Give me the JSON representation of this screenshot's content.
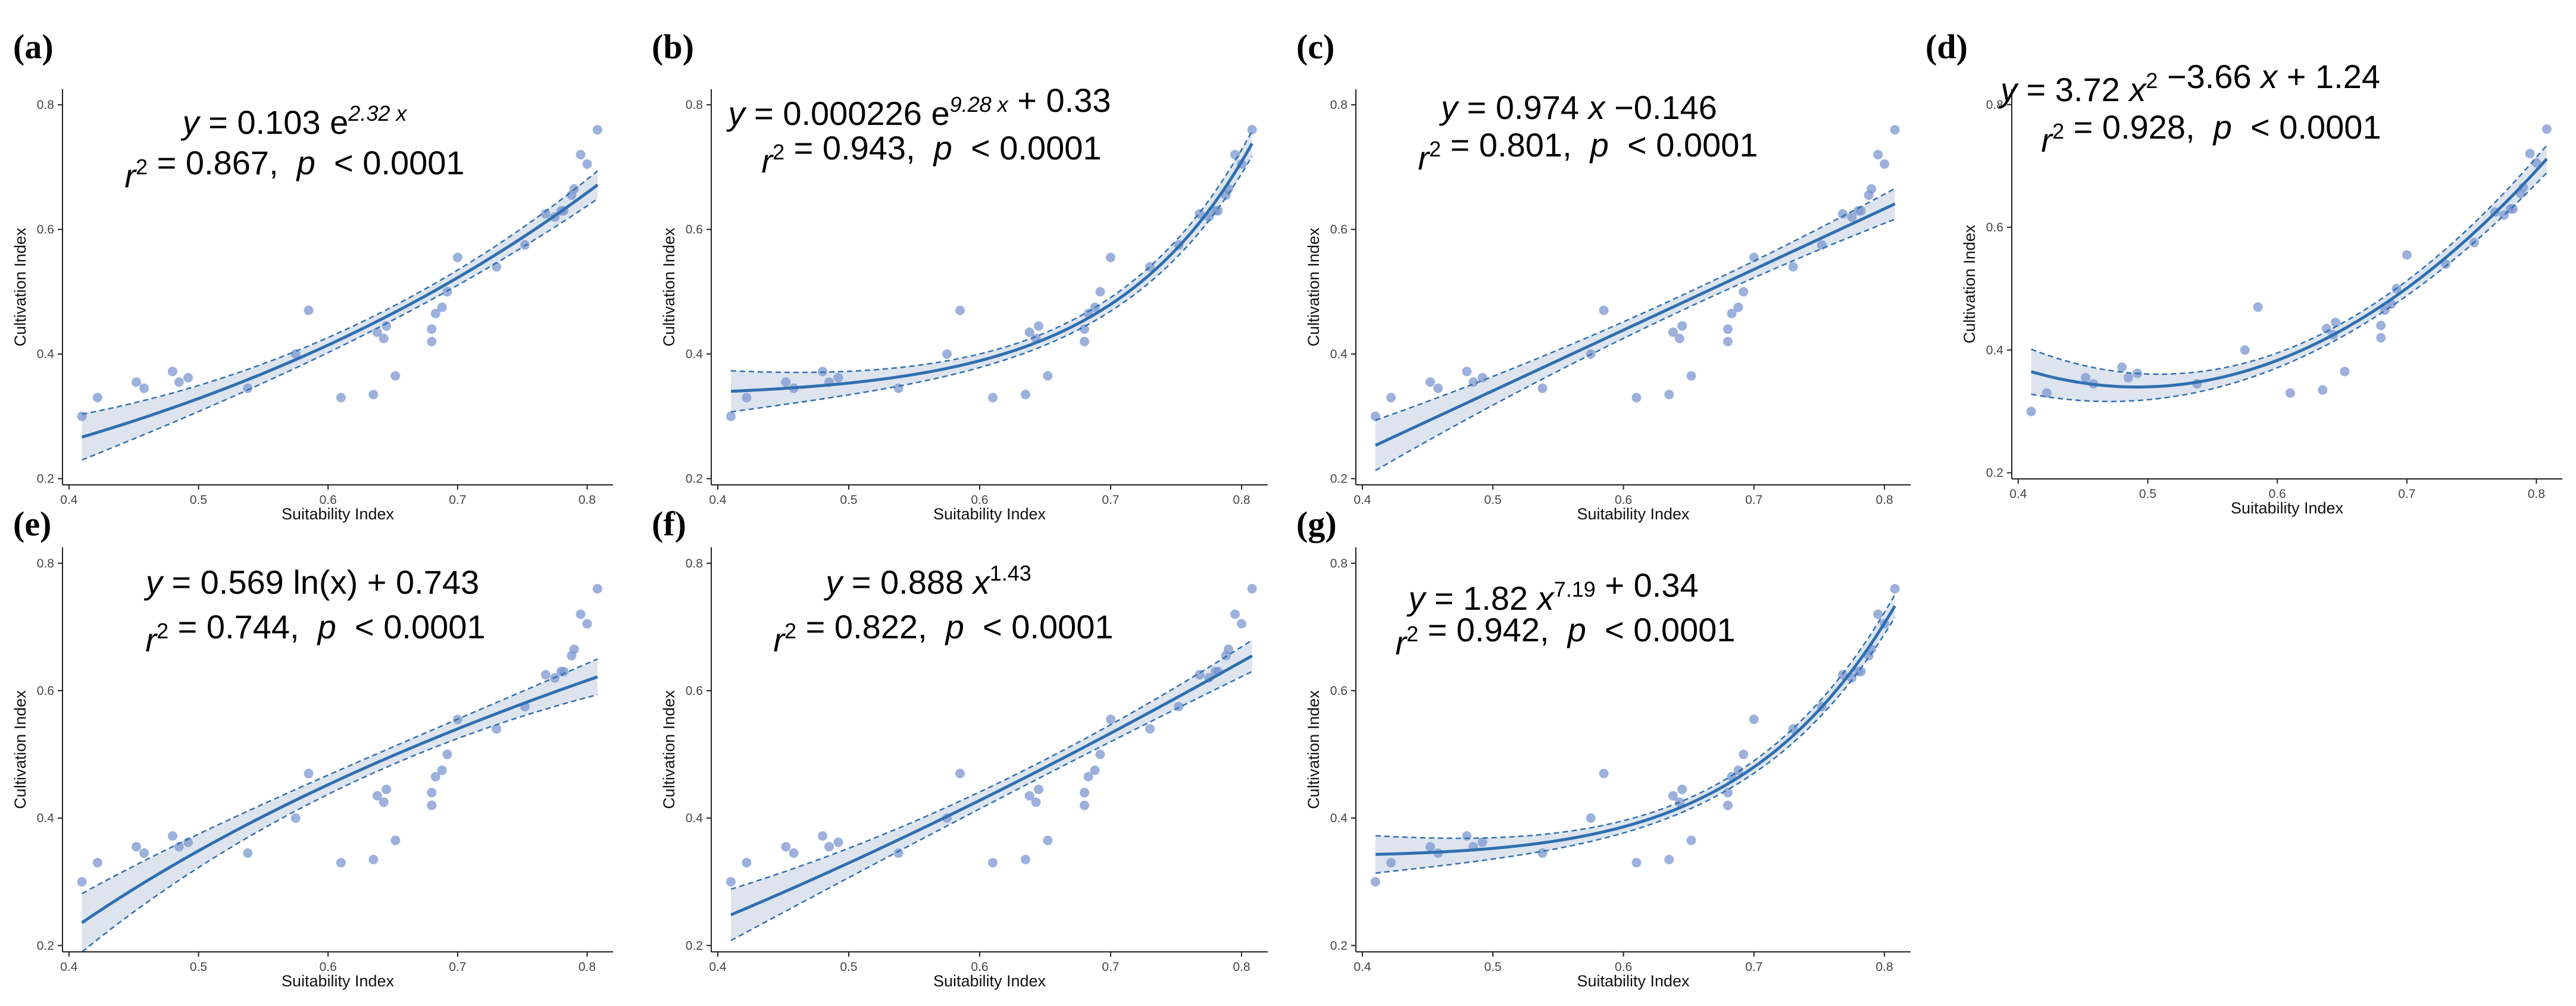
{
  "chart_data": [
    {
      "id": "a",
      "panel_label": "(a)",
      "type": "scatter",
      "fit_model": "exponential",
      "equation": {
        "line1": [
          [
            "y",
            "i"
          ],
          [
            " = 0.103 e",
            ""
          ],
          [
            "2.32 x",
            "sup-i"
          ]
        ],
        "line2": [
          [
            "r",
            "i"
          ],
          [
            "2",
            "sup"
          ],
          [
            " = 0.867,  ",
            ""
          ],
          [
            "p",
            "i"
          ],
          [
            "  < 0.0001",
            ""
          ]
        ]
      },
      "xlabel": "Suitability Index",
      "ylabel": "Cultivation Index",
      "xlim": [
        0.395,
        0.82
      ],
      "ylim": [
        0.19,
        0.825
      ],
      "xticks": [
        0.4,
        0.5,
        0.6,
        0.7,
        0.8
      ],
      "xtick_labels": [
        "0.4",
        "0.5",
        "0.6",
        "0.7",
        "0.8"
      ],
      "yticks": [
        0.2,
        0.4,
        0.6,
        0.8
      ],
      "ytick_labels": [
        "0.2",
        "0.4",
        "0.6",
        "0.8"
      ],
      "fit": {
        "a": 0.103,
        "b": 2.32
      },
      "ci_halfwidth": 0.02
    },
    {
      "id": "b",
      "panel_label": "(b)",
      "type": "scatter",
      "fit_model": "exponential_offset",
      "equation": {
        "line1": [
          [
            "y",
            "i"
          ],
          [
            " = 0.000226 e",
            ""
          ],
          [
            "9.28 x",
            "sup-i"
          ],
          [
            " + 0.33",
            ""
          ]
        ],
        "line2": [
          [
            "r",
            "i"
          ],
          [
            "2",
            "sup"
          ],
          [
            " = 0.943,  ",
            ""
          ],
          [
            "p",
            "i"
          ],
          [
            "  < 0.0001",
            ""
          ]
        ]
      },
      "xlabel": "Suitability Index",
      "ylabel": "Cultivation Index",
      "xlim": [
        0.395,
        0.82
      ],
      "ylim": [
        0.19,
        0.825
      ],
      "xticks": [
        0.4,
        0.5,
        0.6,
        0.7,
        0.8
      ],
      "xtick_labels": [
        "0.4",
        "0.5",
        "0.6",
        "0.7",
        "0.8"
      ],
      "yticks": [
        0.2,
        0.4,
        0.6,
        0.8
      ],
      "ytick_labels": [
        "0.2",
        "0.4",
        "0.6",
        "0.8"
      ],
      "fit": {
        "a": 0.000226,
        "b": 9.28,
        "c": 0.33
      },
      "ci_halfwidth": 0.018
    },
    {
      "id": "c",
      "panel_label": "(c)",
      "type": "scatter",
      "fit_model": "linear",
      "equation": {
        "line1": [
          [
            "y",
            "i"
          ],
          [
            " = 0.974 ",
            ""
          ],
          [
            "x",
            "i"
          ],
          [
            " −0.146",
            ""
          ]
        ],
        "line2": [
          [
            "r",
            "i"
          ],
          [
            "2",
            "sup"
          ],
          [
            " = 0.801,  ",
            ""
          ],
          [
            "p",
            "i"
          ],
          [
            "  < 0.0001",
            ""
          ]
        ]
      },
      "xlabel": "Suitability Index",
      "ylabel": "Cultivation Index",
      "xlim": [
        0.395,
        0.82
      ],
      "ylim": [
        0.19,
        0.825
      ],
      "xticks": [
        0.4,
        0.5,
        0.6,
        0.7,
        0.8
      ],
      "xtick_labels": [
        "0.4",
        "0.5",
        "0.6",
        "0.7",
        "0.8"
      ],
      "yticks": [
        0.2,
        0.4,
        0.6,
        0.8
      ],
      "ytick_labels": [
        "0.2",
        "0.4",
        "0.6",
        "0.8"
      ],
      "fit": {
        "a": 0.974,
        "b": -0.146
      },
      "ci_halfwidth": 0.022
    },
    {
      "id": "d",
      "panel_label": "(d)",
      "type": "scatter",
      "fit_model": "quadratic",
      "equation": {
        "line1": [
          [
            "y",
            "i"
          ],
          [
            " = 3.72 ",
            ""
          ],
          [
            "x",
            "i"
          ],
          [
            "2",
            "sup"
          ],
          [
            " −3.66 ",
            ""
          ],
          [
            "x",
            "i"
          ],
          [
            " + 1.24",
            ""
          ]
        ],
        "line2": [
          [
            "r",
            "i"
          ],
          [
            "2",
            "sup"
          ],
          [
            " = 0.928,  ",
            ""
          ],
          [
            "p",
            "i"
          ],
          [
            "  < 0.0001",
            ""
          ]
        ]
      },
      "xlabel": "Suitability Index",
      "ylabel": "Cultivation Index",
      "xlim": [
        0.395,
        0.82
      ],
      "ylim": [
        0.19,
        0.825
      ],
      "xticks": [
        0.4,
        0.5,
        0.6,
        0.7,
        0.8
      ],
      "xtick_labels": [
        "0.4",
        "0.5",
        "0.6",
        "0.7",
        "0.8"
      ],
      "yticks": [
        0.2,
        0.4,
        0.6,
        0.8
      ],
      "ytick_labels": [
        "0.2",
        "0.4",
        "0.6",
        "0.8"
      ],
      "fit": {
        "a": 3.72,
        "b": -3.66,
        "c": 1.24
      },
      "ci_halfwidth": 0.02
    },
    {
      "id": "e",
      "panel_label": "(e)",
      "type": "scatter",
      "fit_model": "logarithmic",
      "equation": {
        "line1": [
          [
            "y",
            "i"
          ],
          [
            " = 0.569 ln(x) + 0.743",
            ""
          ]
        ],
        "line2": [
          [
            "r",
            "i"
          ],
          [
            "2",
            "sup"
          ],
          [
            " = 0.744,  ",
            ""
          ],
          [
            "p",
            "i"
          ],
          [
            "  < 0.0001",
            ""
          ]
        ]
      },
      "xlabel": "Suitability Index",
      "ylabel": "Cultivation Index",
      "xlim": [
        0.395,
        0.82
      ],
      "ylim": [
        0.19,
        0.825
      ],
      "xticks": [
        0.4,
        0.5,
        0.6,
        0.7,
        0.8
      ],
      "xtick_labels": [
        "0.4",
        "0.5",
        "0.6",
        "0.7",
        "0.8"
      ],
      "yticks": [
        0.2,
        0.4,
        0.6,
        0.8
      ],
      "ytick_labels": [
        "0.2",
        "0.4",
        "0.6",
        "0.8"
      ],
      "fit": {
        "a": 0.569,
        "b": 0.743
      },
      "ci_halfwidth": 0.025
    },
    {
      "id": "f",
      "panel_label": "(f)",
      "type": "scatter",
      "fit_model": "power",
      "equation": {
        "line1": [
          [
            "y",
            "i"
          ],
          [
            " = 0.888 ",
            ""
          ],
          [
            "x",
            "i"
          ],
          [
            "1.43",
            "sup"
          ]
        ],
        "line2": [
          [
            "r",
            "i"
          ],
          [
            "2",
            "sup"
          ],
          [
            " = 0.822,  ",
            ""
          ],
          [
            "p",
            "i"
          ],
          [
            "  < 0.0001",
            ""
          ]
        ]
      },
      "xlabel": "Suitability Index",
      "ylabel": "Cultivation Index",
      "xlim": [
        0.395,
        0.82
      ],
      "ylim": [
        0.19,
        0.825
      ],
      "xticks": [
        0.4,
        0.5,
        0.6,
        0.7,
        0.8
      ],
      "xtick_labels": [
        "0.4",
        "0.5",
        "0.6",
        "0.7",
        "0.8"
      ],
      "yticks": [
        0.2,
        0.4,
        0.6,
        0.8
      ],
      "ytick_labels": [
        "0.2",
        "0.4",
        "0.6",
        "0.8"
      ],
      "fit": {
        "a": 0.888,
        "b": 1.43
      },
      "ci_halfwidth": 0.022
    },
    {
      "id": "g",
      "panel_label": "(g)",
      "type": "scatter",
      "fit_model": "power_offset",
      "equation": {
        "line1": [
          [
            "y",
            "i"
          ],
          [
            " = 1.82 ",
            ""
          ],
          [
            "x",
            "i"
          ],
          [
            "7.19",
            "sup"
          ],
          [
            " + 0.34",
            ""
          ]
        ],
        "line2": [
          [
            "r",
            "i"
          ],
          [
            "2",
            "sup"
          ],
          [
            " = 0.942,  ",
            ""
          ],
          [
            "p",
            "i"
          ],
          [
            "  < 0.0001",
            ""
          ]
        ]
      },
      "xlabel": "Suitability Index",
      "ylabel": "Cultivation Index",
      "xlim": [
        0.395,
        0.82
      ],
      "ylim": [
        0.19,
        0.825
      ],
      "xticks": [
        0.4,
        0.5,
        0.6,
        0.7,
        0.8
      ],
      "xtick_labels": [
        "0.4",
        "0.5",
        "0.6",
        "0.7",
        "0.8"
      ],
      "yticks": [
        0.2,
        0.4,
        0.6,
        0.8
      ],
      "ytick_labels": [
        "0.2",
        "0.4",
        "0.6",
        "0.8"
      ],
      "fit": {
        "a": 1.82,
        "b": 7.19,
        "c": 0.34
      },
      "ci_halfwidth": 0.016
    }
  ],
  "shared_points": {
    "x": [
      0.41,
      0.422,
      0.452,
      0.458,
      0.48,
      0.485,
      0.492,
      0.538,
      0.575,
      0.585,
      0.61,
      0.635,
      0.638,
      0.643,
      0.645,
      0.652,
      0.68,
      0.68,
      0.683,
      0.688,
      0.692,
      0.7,
      0.73,
      0.752,
      0.768,
      0.775,
      0.78,
      0.782,
      0.788,
      0.79,
      0.795,
      0.8,
      0.808
    ],
    "y": [
      0.3,
      0.33,
      0.355,
      0.345,
      0.372,
      0.355,
      0.362,
      0.345,
      0.4,
      0.47,
      0.33,
      0.335,
      0.435,
      0.425,
      0.445,
      0.365,
      0.42,
      0.44,
      0.465,
      0.475,
      0.5,
      0.555,
      0.54,
      0.575,
      0.625,
      0.62,
      0.63,
      0.63,
      0.655,
      0.665,
      0.72,
      0.705,
      0.76
    ]
  },
  "style": {
    "fit_color": "#2f6fb0",
    "ci_fill": "#dde4ee",
    "point_color": "#7b97cf",
    "axis_color": "#222222"
  }
}
